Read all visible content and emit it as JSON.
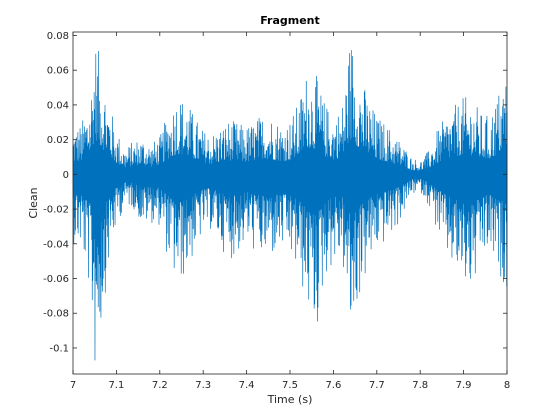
{
  "chart_data": {
    "type": "line",
    "title": "Fragment",
    "xlabel": "Time (s)",
    "ylabel": "Clean",
    "xlim": [
      7,
      8
    ],
    "ylim": [
      -0.115,
      0.082
    ],
    "xticks": [
      7,
      7.1,
      7.2,
      7.3,
      7.4,
      7.5,
      7.6,
      7.7,
      7.8,
      7.9,
      8
    ],
    "xtick_labels": [
      "7",
      "7.1",
      "7.2",
      "7.3",
      "7.4",
      "7.5",
      "7.6",
      "7.7",
      "7.8",
      "7.9",
      "8"
    ],
    "yticks": [
      -0.1,
      -0.08,
      -0.06,
      -0.04,
      -0.02,
      0,
      0.02,
      0.04,
      0.06,
      0.08
    ],
    "ytick_labels": [
      "-0.1",
      "-0.08",
      "-0.06",
      "-0.04",
      "-0.02",
      "0",
      "0.02",
      "0.04",
      "0.06",
      "0.08"
    ],
    "grid": false,
    "line_color": "#0072BD",
    "series": [
      {
        "envelope": {
          "t": [
            7.0,
            7.02,
            7.04,
            7.05,
            7.06,
            7.08,
            7.1,
            7.12,
            7.14,
            7.16,
            7.18,
            7.2,
            7.22,
            7.24,
            7.26,
            7.28,
            7.3,
            7.32,
            7.34,
            7.36,
            7.38,
            7.4,
            7.42,
            7.44,
            7.46,
            7.48,
            7.5,
            7.52,
            7.54,
            7.56,
            7.58,
            7.6,
            7.62,
            7.64,
            7.66,
            7.68,
            7.7,
            7.72,
            7.74,
            7.76,
            7.78,
            7.8,
            7.82,
            7.84,
            7.86,
            7.88,
            7.9,
            7.92,
            7.94,
            7.96,
            7.98,
            8.0
          ],
          "upper": [
            0.028,
            0.03,
            0.048,
            0.082,
            0.07,
            0.046,
            0.026,
            0.015,
            0.02,
            0.022,
            0.018,
            0.022,
            0.036,
            0.047,
            0.044,
            0.034,
            0.026,
            0.024,
            0.028,
            0.032,
            0.03,
            0.028,
            0.032,
            0.036,
            0.034,
            0.03,
            0.032,
            0.042,
            0.062,
            0.058,
            0.042,
            0.034,
            0.04,
            0.082,
            0.06,
            0.045,
            0.034,
            0.03,
            0.024,
            0.018,
            0.01,
            0.008,
            0.014,
            0.026,
            0.034,
            0.04,
            0.045,
            0.044,
            0.036,
            0.034,
            0.048,
            0.062
          ],
          "lower": [
            -0.04,
            -0.044,
            -0.07,
            -0.115,
            -0.1,
            -0.056,
            -0.03,
            -0.018,
            -0.02,
            -0.03,
            -0.028,
            -0.03,
            -0.05,
            -0.066,
            -0.058,
            -0.046,
            -0.034,
            -0.032,
            -0.042,
            -0.05,
            -0.046,
            -0.04,
            -0.046,
            -0.05,
            -0.048,
            -0.044,
            -0.048,
            -0.06,
            -0.078,
            -0.095,
            -0.06,
            -0.052,
            -0.05,
            -0.098,
            -0.072,
            -0.056,
            -0.044,
            -0.04,
            -0.034,
            -0.024,
            -0.012,
            -0.01,
            -0.018,
            -0.034,
            -0.048,
            -0.058,
            -0.066,
            -0.07,
            -0.052,
            -0.046,
            -0.06,
            -0.065
          ]
        }
      }
    ]
  }
}
